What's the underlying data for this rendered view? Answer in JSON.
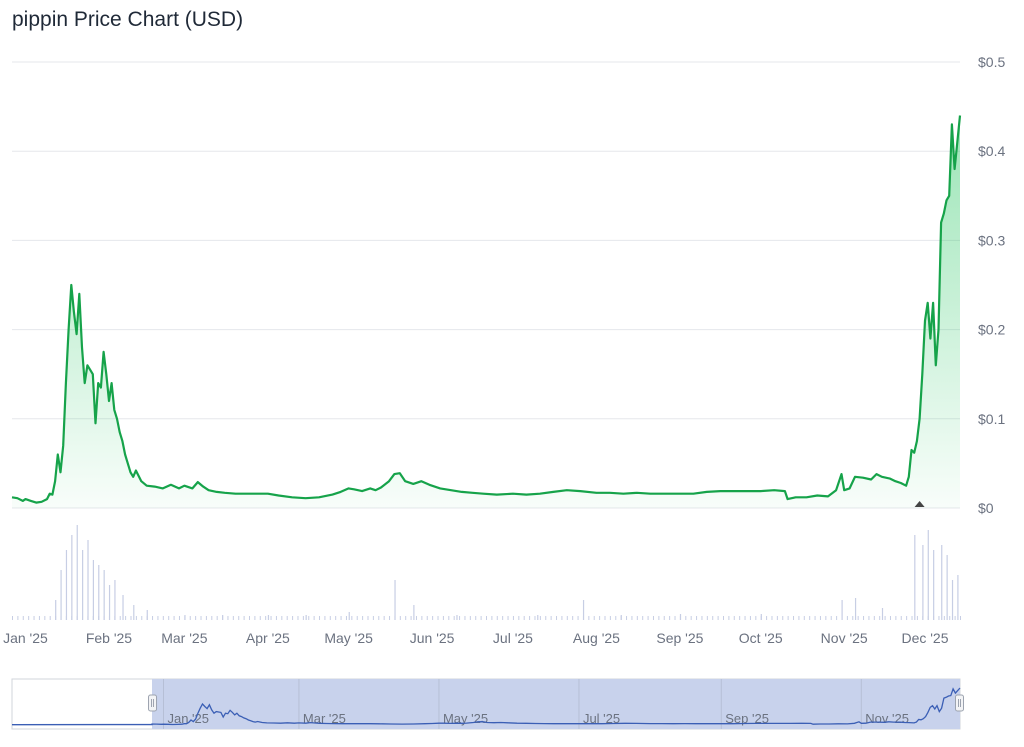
{
  "chart_data": {
    "type": "area",
    "title": "pippin Price Chart (USD)",
    "currency": "USD",
    "line_color": "#16a34a",
    "area_color": "#22c55e",
    "volume_color": "#c7cee4",
    "navigator_fill": "#c8d2ec",
    "navigator_line": "#3b5fb5",
    "ylim": [
      0,
      0.5
    ],
    "y_ticks": [
      {
        "v": 0,
        "label": "$0"
      },
      {
        "v": 0.1,
        "label": "$0.1"
      },
      {
        "v": 0.2,
        "label": "$0.2"
      },
      {
        "v": 0.3,
        "label": "$0.3"
      },
      {
        "v": 0.4,
        "label": "$0.4"
      },
      {
        "v": 0.5,
        "label": "$0.5"
      }
    ],
    "x_domain": [
      "2024-12-27",
      "2025-12-14"
    ],
    "x_ticks": [
      {
        "d": "2025-01-01",
        "label": "Jan '25"
      },
      {
        "d": "2025-02-01",
        "label": "Feb '25"
      },
      {
        "d": "2025-03-01",
        "label": "Mar '25"
      },
      {
        "d": "2025-04-01",
        "label": "Apr '25"
      },
      {
        "d": "2025-05-01",
        "label": "May '25"
      },
      {
        "d": "2025-06-01",
        "label": "Jun '25"
      },
      {
        "d": "2025-07-01",
        "label": "Jul '25"
      },
      {
        "d": "2025-08-01",
        "label": "Aug '25"
      },
      {
        "d": "2025-09-01",
        "label": "Sep '25"
      },
      {
        "d": "2025-10-01",
        "label": "Oct '25"
      },
      {
        "d": "2025-11-01",
        "label": "Nov '25"
      },
      {
        "d": "2025-12-01",
        "label": "Dec '25"
      }
    ],
    "navigator_ticks": [
      {
        "d": "2025-01-01",
        "label": "Jan '25"
      },
      {
        "d": "2025-03-01",
        "label": "Mar '25"
      },
      {
        "d": "2025-05-01",
        "label": "May '25"
      },
      {
        "d": "2025-07-01",
        "label": "Jul '25"
      },
      {
        "d": "2025-09-01",
        "label": "Sep '25"
      },
      {
        "d": "2025-11-01",
        "label": "Nov '25"
      }
    ],
    "navigator_domain": [
      "2024-10-27",
      "2025-12-14"
    ],
    "navigator_selection": [
      "2024-12-27",
      "2025-12-14"
    ],
    "series": [
      {
        "points": [
          [
            "2024-12-27",
            0.012
          ],
          [
            "2024-12-29",
            0.011
          ],
          [
            "2024-12-31",
            0.008
          ],
          [
            "2025-01-01",
            0.01
          ],
          [
            "2025-01-03",
            0.008
          ],
          [
            "2025-01-05",
            0.006
          ],
          [
            "2025-01-07",
            0.007
          ],
          [
            "2025-01-09",
            0.01
          ],
          [
            "2025-01-10",
            0.016
          ],
          [
            "2025-01-11",
            0.015
          ],
          [
            "2025-01-12",
            0.03
          ],
          [
            "2025-01-13",
            0.06
          ],
          [
            "2025-01-14",
            0.04
          ],
          [
            "2025-01-15",
            0.07
          ],
          [
            "2025-01-16",
            0.14
          ],
          [
            "2025-01-17",
            0.2
          ],
          [
            "2025-01-18",
            0.25
          ],
          [
            "2025-01-19",
            0.22
          ],
          [
            "2025-01-20",
            0.195
          ],
          [
            "2025-01-21",
            0.24
          ],
          [
            "2025-01-22",
            0.18
          ],
          [
            "2025-01-23",
            0.14
          ],
          [
            "2025-01-24",
            0.16
          ],
          [
            "2025-01-25",
            0.155
          ],
          [
            "2025-01-26",
            0.15
          ],
          [
            "2025-01-27",
            0.095
          ],
          [
            "2025-01-28",
            0.14
          ],
          [
            "2025-01-29",
            0.135
          ],
          [
            "2025-01-30",
            0.175
          ],
          [
            "2025-01-31",
            0.15
          ],
          [
            "2025-02-01",
            0.12
          ],
          [
            "2025-02-02",
            0.14
          ],
          [
            "2025-02-03",
            0.11
          ],
          [
            "2025-02-04",
            0.1
          ],
          [
            "2025-02-05",
            0.085
          ],
          [
            "2025-02-06",
            0.075
          ],
          [
            "2025-02-07",
            0.06
          ],
          [
            "2025-02-08",
            0.05
          ],
          [
            "2025-02-09",
            0.04
          ],
          [
            "2025-02-10",
            0.035
          ],
          [
            "2025-02-11",
            0.042
          ],
          [
            "2025-02-13",
            0.03
          ],
          [
            "2025-02-15",
            0.025
          ],
          [
            "2025-02-18",
            0.024
          ],
          [
            "2025-02-21",
            0.022
          ],
          [
            "2025-02-24",
            0.026
          ],
          [
            "2025-02-27",
            0.022
          ],
          [
            "2025-03-01",
            0.025
          ],
          [
            "2025-03-04",
            0.022
          ],
          [
            "2025-03-06",
            0.029
          ],
          [
            "2025-03-08",
            0.024
          ],
          [
            "2025-03-10",
            0.02
          ],
          [
            "2025-03-13",
            0.018
          ],
          [
            "2025-03-16",
            0.017
          ],
          [
            "2025-03-20",
            0.016
          ],
          [
            "2025-03-25",
            0.016
          ],
          [
            "2025-04-01",
            0.016
          ],
          [
            "2025-04-05",
            0.014
          ],
          [
            "2025-04-10",
            0.012
          ],
          [
            "2025-04-15",
            0.011
          ],
          [
            "2025-04-20",
            0.012
          ],
          [
            "2025-04-25",
            0.015
          ],
          [
            "2025-04-28",
            0.018
          ],
          [
            "2025-05-01",
            0.022
          ],
          [
            "2025-05-03",
            0.021
          ],
          [
            "2025-05-06",
            0.019
          ],
          [
            "2025-05-09",
            0.022
          ],
          [
            "2025-05-11",
            0.02
          ],
          [
            "2025-05-13",
            0.023
          ],
          [
            "2025-05-16",
            0.03
          ],
          [
            "2025-05-18",
            0.038
          ],
          [
            "2025-05-20",
            0.039
          ],
          [
            "2025-05-22",
            0.03
          ],
          [
            "2025-05-25",
            0.027
          ],
          [
            "2025-05-28",
            0.03
          ],
          [
            "2025-05-31",
            0.026
          ],
          [
            "2025-06-04",
            0.022
          ],
          [
            "2025-06-08",
            0.02
          ],
          [
            "2025-06-12",
            0.018
          ],
          [
            "2025-06-16",
            0.017
          ],
          [
            "2025-06-20",
            0.016
          ],
          [
            "2025-06-25",
            0.015
          ],
          [
            "2025-07-01",
            0.016
          ],
          [
            "2025-07-06",
            0.015
          ],
          [
            "2025-07-11",
            0.016
          ],
          [
            "2025-07-16",
            0.018
          ],
          [
            "2025-07-21",
            0.02
          ],
          [
            "2025-07-26",
            0.019
          ],
          [
            "2025-08-01",
            0.017
          ],
          [
            "2025-08-06",
            0.017
          ],
          [
            "2025-08-11",
            0.016
          ],
          [
            "2025-08-16",
            0.017
          ],
          [
            "2025-08-21",
            0.016
          ],
          [
            "2025-08-26",
            0.016
          ],
          [
            "2025-09-01",
            0.016
          ],
          [
            "2025-09-06",
            0.016
          ],
          [
            "2025-09-11",
            0.018
          ],
          [
            "2025-09-16",
            0.019
          ],
          [
            "2025-09-21",
            0.019
          ],
          [
            "2025-09-26",
            0.019
          ],
          [
            "2025-10-01",
            0.019
          ],
          [
            "2025-10-06",
            0.02
          ],
          [
            "2025-10-10",
            0.019
          ],
          [
            "2025-10-11",
            0.01
          ],
          [
            "2025-10-14",
            0.012
          ],
          [
            "2025-10-18",
            0.012
          ],
          [
            "2025-10-22",
            0.014
          ],
          [
            "2025-10-26",
            0.013
          ],
          [
            "2025-10-29",
            0.02
          ],
          [
            "2025-10-31",
            0.038
          ],
          [
            "2025-11-01",
            0.02
          ],
          [
            "2025-11-03",
            0.022
          ],
          [
            "2025-11-05",
            0.035
          ],
          [
            "2025-11-08",
            0.034
          ],
          [
            "2025-11-11",
            0.032
          ],
          [
            "2025-11-13",
            0.038
          ],
          [
            "2025-11-15",
            0.035
          ],
          [
            "2025-11-18",
            0.033
          ],
          [
            "2025-11-20",
            0.03
          ],
          [
            "2025-11-22",
            0.028
          ],
          [
            "2025-11-24",
            0.025
          ],
          [
            "2025-11-25",
            0.035
          ],
          [
            "2025-11-26",
            0.065
          ],
          [
            "2025-11-27",
            0.062
          ],
          [
            "2025-11-28",
            0.075
          ],
          [
            "2025-11-29",
            0.1
          ],
          [
            "2025-11-30",
            0.15
          ],
          [
            "2025-12-01",
            0.21
          ],
          [
            "2025-12-02",
            0.23
          ],
          [
            "2025-12-03",
            0.19
          ],
          [
            "2025-12-04",
            0.23
          ],
          [
            "2025-12-05",
            0.16
          ],
          [
            "2025-12-06",
            0.2
          ],
          [
            "2025-12-07",
            0.32
          ],
          [
            "2025-12-08",
            0.33
          ],
          [
            "2025-12-09",
            0.345
          ],
          [
            "2025-12-10",
            0.35
          ],
          [
            "2025-12-11",
            0.43
          ],
          [
            "2025-12-12",
            0.38
          ],
          [
            "2025-12-13",
            0.41
          ],
          [
            "2025-12-14",
            0.44
          ]
        ]
      }
    ],
    "volume_series": {
      "dates": [
        "2025-01-12",
        "2025-01-14",
        "2025-01-16",
        "2025-01-18",
        "2025-01-20",
        "2025-01-22",
        "2025-01-24",
        "2025-01-26",
        "2025-01-28",
        "2025-01-30",
        "2025-02-01",
        "2025-02-03",
        "2025-02-06",
        "2025-02-10",
        "2025-02-15",
        "2025-03-01",
        "2025-03-15",
        "2025-04-01",
        "2025-04-15",
        "2025-05-01",
        "2025-05-18",
        "2025-05-25",
        "2025-06-10",
        "2025-07-10",
        "2025-07-27",
        "2025-08-10",
        "2025-09-01",
        "2025-10-01",
        "2025-10-31",
        "2025-11-05",
        "2025-11-15",
        "2025-11-27",
        "2025-11-30",
        "2025-12-02",
        "2025-12-04",
        "2025-12-07",
        "2025-12-09",
        "2025-12-11",
        "2025-12-13"
      ],
      "values": [
        0.2,
        0.5,
        0.7,
        0.85,
        0.95,
        0.7,
        0.8,
        0.6,
        0.55,
        0.5,
        0.35,
        0.4,
        0.25,
        0.15,
        0.1,
        0.05,
        0.05,
        0.05,
        0.05,
        0.08,
        0.4,
        0.15,
        0.05,
        0.05,
        0.2,
        0.05,
        0.06,
        0.06,
        0.2,
        0.22,
        0.12,
        0.85,
        0.75,
        0.9,
        0.7,
        0.75,
        0.65,
        0.4,
        0.45
      ]
    },
    "marker": {
      "d": "2025-11-29",
      "shape": "triangle-up",
      "color": "#444444"
    }
  }
}
